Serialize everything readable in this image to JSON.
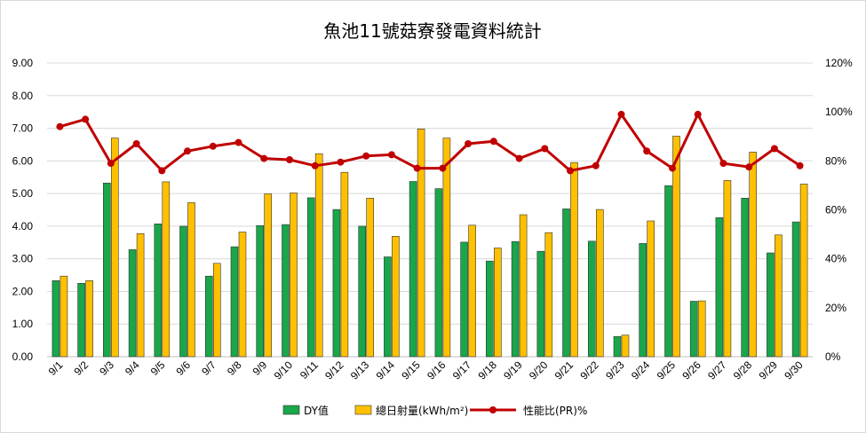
{
  "chart_data": {
    "type": "bar",
    "title": "魚池11號菇寮發電資料統計",
    "categories": [
      "9/1",
      "9/2",
      "9/3",
      "9/4",
      "9/5",
      "9/6",
      "9/7",
      "9/8",
      "9/9",
      "9/10",
      "9/11",
      "9/12",
      "9/13",
      "9/14",
      "9/15",
      "9/16",
      "9/17",
      "9/18",
      "9/19",
      "9/20",
      "9/21",
      "9/22",
      "9/23",
      "9/24",
      "9/25",
      "9/26",
      "9/27",
      "9/28",
      "9/29",
      "9/30"
    ],
    "series": [
      {
        "name": "DY值",
        "type": "bar",
        "axis": "left",
        "color": "#1aa64a",
        "values": [
          2.33,
          2.25,
          5.32,
          3.28,
          4.07,
          4.0,
          2.47,
          3.37,
          4.02,
          4.05,
          4.87,
          4.51,
          4.0,
          3.06,
          5.37,
          5.15,
          3.51,
          2.93,
          3.53,
          3.23,
          4.53,
          3.54,
          0.62,
          3.47,
          5.24,
          1.7,
          4.26,
          4.86,
          3.18,
          4.13
        ]
      },
      {
        "name": "總日射量(kWh/m²)",
        "type": "bar",
        "axis": "left",
        "color": "#ffc000",
        "values": [
          2.47,
          2.33,
          6.7,
          3.77,
          5.36,
          4.72,
          2.86,
          3.82,
          4.99,
          5.02,
          6.22,
          5.65,
          4.86,
          3.69,
          6.98,
          6.7,
          4.03,
          3.33,
          4.35,
          3.8,
          5.95,
          4.51,
          0.66,
          4.16,
          6.76,
          1.71,
          5.4,
          6.27,
          3.73,
          5.29
        ]
      },
      {
        "name": "性能比(PR)%",
        "type": "line",
        "axis": "right",
        "color": "#c00000",
        "values": [
          94,
          97,
          79,
          87,
          76,
          84,
          86,
          87.5,
          81,
          80.5,
          78,
          79.5,
          82,
          82.5,
          77,
          77,
          87,
          88,
          81,
          85,
          76,
          78,
          99,
          84,
          77,
          99,
          79,
          77.5,
          85,
          78
        ]
      }
    ],
    "y_left": {
      "min": 0,
      "max": 9,
      "step": 1,
      "ticks": [
        "0.00",
        "1.00",
        "2.00",
        "3.00",
        "4.00",
        "5.00",
        "6.00",
        "7.00",
        "8.00",
        "9.00"
      ]
    },
    "y_right": {
      "min": 0,
      "max": 120,
      "step": 20,
      "ticks": [
        "0%",
        "20%",
        "40%",
        "60%",
        "80%",
        "100%",
        "120%"
      ]
    },
    "grid": true,
    "legend_position": "bottom"
  }
}
